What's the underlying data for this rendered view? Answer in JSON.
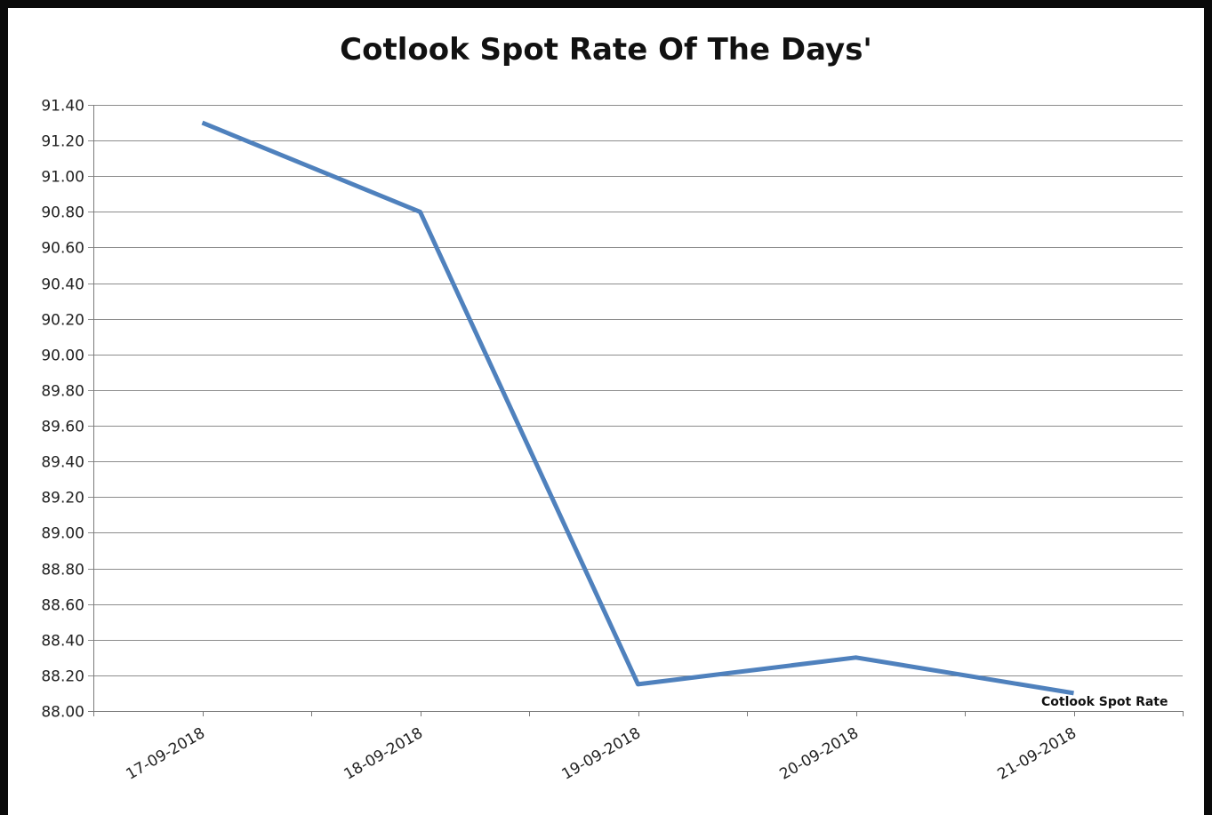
{
  "chart_data": {
    "type": "line",
    "title": "Cotlook Spot Rate Of The Days'",
    "xlabel": "",
    "ylabel": "",
    "categories": [
      "17-09-2018",
      "18-09-2018",
      "19-09-2018",
      "20-09-2018",
      "21-09-2018"
    ],
    "series": [
      {
        "name": "Cotlook Spot Rate",
        "values": [
          91.3,
          90.8,
          88.15,
          88.3,
          88.1
        ],
        "color": "#4f81bd"
      }
    ],
    "ylim": [
      88.0,
      91.4
    ],
    "yticks": [
      "88.00",
      "88.20",
      "88.40",
      "88.60",
      "88.80",
      "89.00",
      "89.20",
      "89.40",
      "89.60",
      "89.80",
      "90.00",
      "90.20",
      "90.40",
      "90.60",
      "90.80",
      "91.00",
      "91.20",
      "91.40"
    ],
    "grid": true,
    "legend": "data label at end of series"
  },
  "colors": {
    "line": "#4f81bd",
    "grid": "#8c8c8c",
    "frame": "#0a0a0a"
  }
}
